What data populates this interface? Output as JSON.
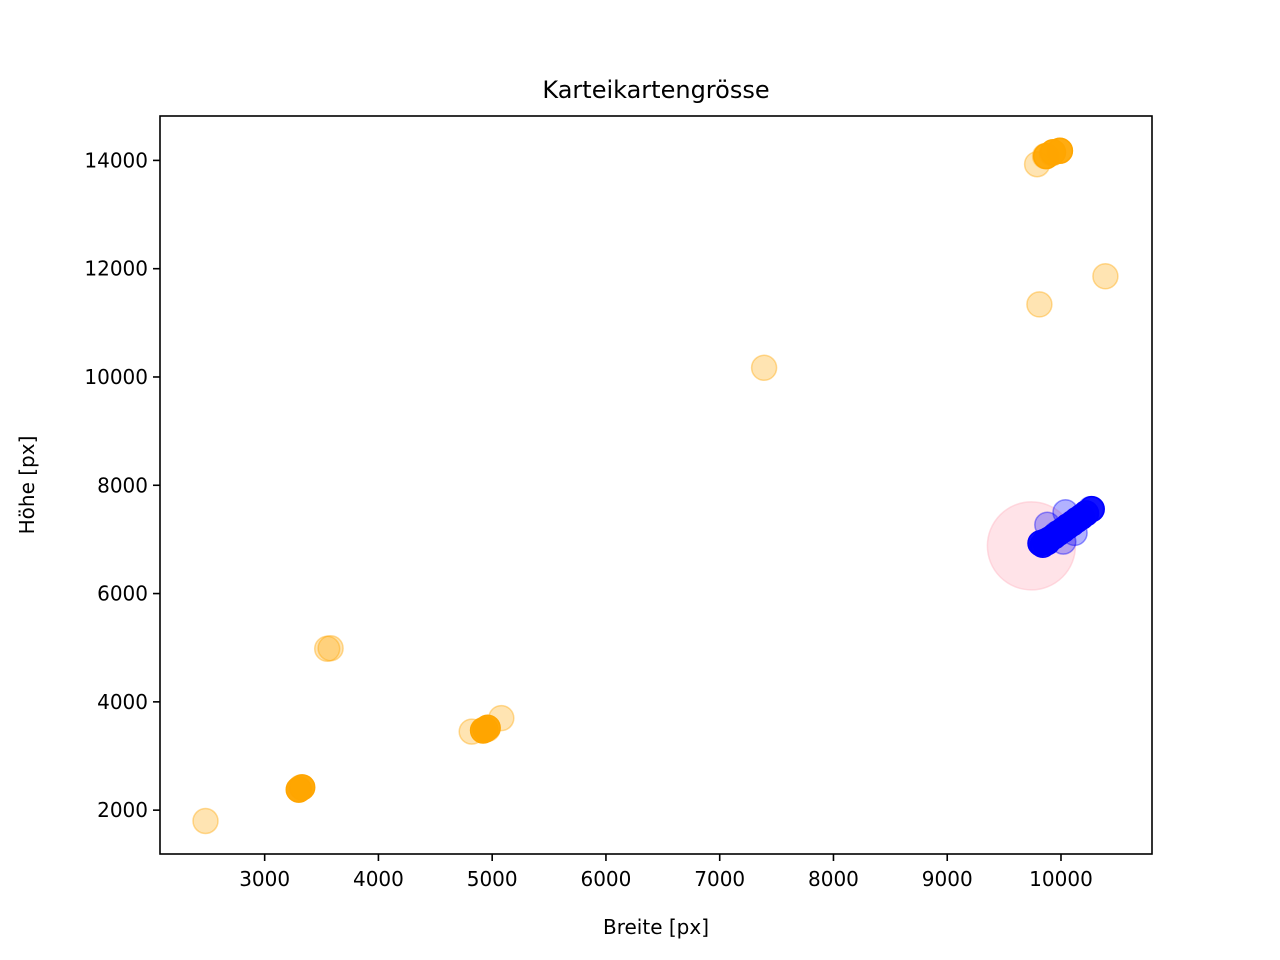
{
  "chart_data": {
    "type": "scatter",
    "title": "Karteikartengrösse",
    "xlabel": "Breite [px]",
    "ylabel": "Höhe [px]",
    "xlim": [
      2080,
      10800
    ],
    "ylim": [
      1190,
      14820
    ],
    "xticks": [
      3000,
      4000,
      5000,
      6000,
      7000,
      8000,
      9000,
      10000
    ],
    "yticks": [
      2000,
      4000,
      6000,
      8000,
      10000,
      12000,
      14000
    ],
    "grid": false,
    "series": [
      {
        "color": "#ffa500",
        "opacity": 0.3,
        "points": [
          [
            2480,
            1800
          ],
          [
            3300,
            2380
          ],
          [
            3320,
            2420
          ],
          [
            3310,
            2400
          ],
          [
            3550,
            4980
          ],
          [
            3580,
            4990
          ],
          [
            4820,
            3450
          ],
          [
            5080,
            3700
          ],
          [
            4920,
            3480
          ],
          [
            4960,
            3500
          ],
          [
            7390,
            10170
          ],
          [
            9810,
            11340
          ],
          [
            10390,
            11860
          ],
          [
            9790,
            13930
          ],
          [
            9860,
            14080
          ],
          [
            9920,
            14130
          ],
          [
            9990,
            14180
          ]
        ]
      },
      {
        "color": "#ffa500",
        "opacity": 0.9,
        "points": [
          [
            3300,
            2380
          ],
          [
            3330,
            2420
          ],
          [
            4920,
            3470
          ],
          [
            4960,
            3520
          ],
          [
            4940,
            3490
          ],
          [
            9870,
            14080
          ],
          [
            9930,
            14150
          ],
          [
            9990,
            14180
          ]
        ]
      },
      {
        "color": "#ffc0cb",
        "opacity": 0.45,
        "size": "large",
        "points": [
          [
            9740,
            6880
          ]
        ]
      },
      {
        "color": "#0000ff",
        "opacity": 0.3,
        "points": [
          [
            10040,
            7500
          ],
          [
            9880,
            7270
          ],
          [
            10020,
            6960
          ],
          [
            10120,
            7120
          ],
          [
            10260,
            7560
          ],
          [
            9830,
            6940
          ],
          [
            9960,
            7100
          ]
        ]
      },
      {
        "color": "#0000ff",
        "opacity": 0.9,
        "points": [
          [
            9820,
            6930
          ],
          [
            9860,
            6960
          ],
          [
            9900,
            7000
          ],
          [
            9940,
            7060
          ],
          [
            9980,
            7120
          ],
          [
            10020,
            7180
          ],
          [
            10060,
            7240
          ],
          [
            10100,
            7300
          ],
          [
            10140,
            7360
          ],
          [
            10180,
            7420
          ],
          [
            10220,
            7480
          ],
          [
            10270,
            7560
          ],
          [
            9840,
            6900
          ],
          [
            9880,
            6950
          ]
        ]
      }
    ]
  }
}
